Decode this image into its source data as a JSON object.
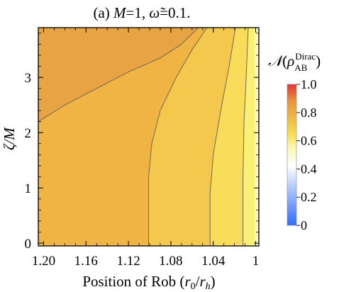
{
  "chart_data": {
    "type": "heatmap",
    "title": "(a) M=1, ω̃=0.1.",
    "xlabel": "Position of Rob (r₀/rₕ)",
    "ylabel": "ζ/M",
    "x_ticks": [
      "1.20",
      "1.16",
      "1.12",
      "1.08",
      "1.04",
      "1"
    ],
    "x_tick_values": [
      1.2,
      1.16,
      1.12,
      1.08,
      1.04,
      1.0
    ],
    "y_ticks": [
      "0",
      "1",
      "2",
      "3"
    ],
    "y_tick_values": [
      0,
      1,
      2,
      3
    ],
    "xlim": [
      1.205,
      0.997
    ],
    "ylim": [
      -0.05,
      3.9
    ],
    "x_reversed": true,
    "colorbar": {
      "label": "𝒩(ρ_AB^Dirac)",
      "ticks": [
        "1.0",
        "0.8",
        "0.6",
        "0.4",
        "0.2",
        "0"
      ],
      "tick_values": [
        1.0,
        0.8,
        0.6,
        0.4,
        0.2,
        0.0
      ],
      "range": [
        0,
        1
      ]
    },
    "contour_regions": [
      {
        "level": "0.80-0.85",
        "color": "#e8a443"
      },
      {
        "level": "0.75-0.80",
        "color": "#efb444"
      },
      {
        "level": "0.70-0.75",
        "color": "#f4c84d"
      },
      {
        "level": "0.65-0.70",
        "color": "#f8dc5a"
      },
      {
        "level": "0.60-0.65",
        "color": "#fbef76"
      },
      {
        "level": "0.55-0.60",
        "color": "#fdf8c0"
      }
    ],
    "contour_lines": [
      {
        "name": "upper",
        "points": [
          [
            1.205,
            2.2
          ],
          [
            1.18,
            2.5
          ],
          [
            1.15,
            2.8
          ],
          [
            1.12,
            3.1
          ],
          [
            1.09,
            3.35
          ],
          [
            1.07,
            3.6
          ],
          [
            1.054,
            3.9
          ]
        ]
      },
      {
        "name": "mid1",
        "points": [
          [
            1.101,
            -0.05
          ],
          [
            1.101,
            1.2
          ],
          [
            1.098,
            1.8
          ],
          [
            1.09,
            2.4
          ],
          [
            1.075,
            3.0
          ],
          [
            1.06,
            3.5
          ],
          [
            1.046,
            3.9
          ]
        ]
      },
      {
        "name": "mid2",
        "points": [
          [
            1.043,
            -0.05
          ],
          [
            1.043,
            0.9
          ],
          [
            1.04,
            1.6
          ],
          [
            1.033,
            2.4
          ],
          [
            1.025,
            3.2
          ],
          [
            1.019,
            3.9
          ]
        ]
      },
      {
        "name": "mid3",
        "points": [
          [
            1.012,
            -0.05
          ],
          [
            1.012,
            1.2
          ],
          [
            1.011,
            2.2
          ],
          [
            1.009,
            3.0
          ],
          [
            1.007,
            3.9
          ]
        ]
      },
      {
        "name": "edge",
        "points": [
          [
            1.001,
            -0.05
          ],
          [
            1.001,
            3.9
          ]
        ]
      }
    ]
  }
}
